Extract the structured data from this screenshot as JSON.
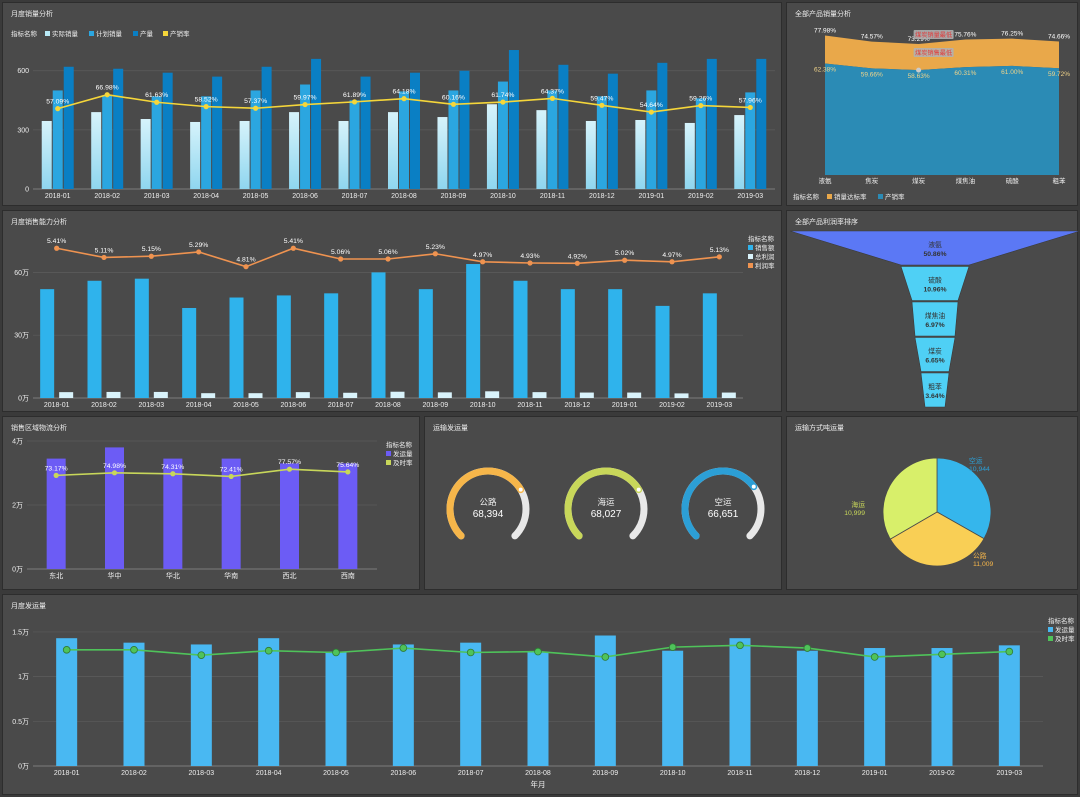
{
  "colors": {
    "grid": "#5c5c5c",
    "axis": "#888",
    "text": "#eee",
    "label": "#fff"
  },
  "months": [
    "2018-01",
    "2018-02",
    "2018-03",
    "2018-04",
    "2018-05",
    "2018-06",
    "2018-07",
    "2018-08",
    "2018-09",
    "2018-10",
    "2018-11",
    "2018-12",
    "2019-01",
    "2019-02",
    "2019-03"
  ],
  "panels": {
    "monthly_sales": {
      "title": "月度销量分析",
      "legend_title": "指标名称"
    },
    "product_sales": {
      "title": "全部产品销量分析",
      "legend_title": "指标名称"
    },
    "monthly_capacity": {
      "title": "月度销售能力分析",
      "legend_title": "指标名称"
    },
    "profit_rank": {
      "title": "全部产品利润率排序"
    },
    "region_logistics": {
      "title": "销售区域物流分析",
      "legend_title": "指标名称"
    },
    "transport_volume": {
      "title": "运输发运量"
    },
    "transport_mode": {
      "title": "运输方式吨运量"
    },
    "monthly_shipment": {
      "title": "月度发运量",
      "legend_title": "指标名称"
    }
  },
  "chart_data": [
    {
      "id": "monthly_sales",
      "type": "bar",
      "categories": [
        "2018-01",
        "2018-02",
        "2018-03",
        "2018-04",
        "2018-05",
        "2018-06",
        "2018-07",
        "2018-08",
        "2018-09",
        "2018-10",
        "2018-11",
        "2018-12",
        "2019-01",
        "2019-02",
        "2019-03"
      ],
      "yticks": [
        "0",
        "300",
        "600"
      ],
      "ylim": [
        0,
        700
      ],
      "series": [
        {
          "name": "实际销量",
          "color": "#b9eaf6",
          "values": [
            345,
            390,
            355,
            340,
            345,
            390,
            345,
            390,
            365,
            430,
            400,
            345,
            350,
            335,
            375
          ]
        },
        {
          "name": "计划销量",
          "color": "#2ba6e0",
          "values": [
            500,
            475,
            470,
            470,
            500,
            530,
            450,
            495,
            500,
            545,
            500,
            470,
            500,
            460,
            490
          ]
        },
        {
          "name": "产量",
          "color": "#0a7fc4",
          "values": [
            620,
            610,
            590,
            570,
            620,
            660,
            570,
            590,
            600,
            705,
            630,
            585,
            640,
            660,
            660
          ]
        }
      ],
      "line": {
        "name": "产销率",
        "color": "#f5d63a",
        "values": [
          57.09,
          66.98,
          61.63,
          58.52,
          57.37,
          59.97,
          61.89,
          64.18,
          60.16,
          61.74,
          64.37,
          59.47,
          54.64,
          59.26,
          57.96
        ],
        "labels": [
          "57.09%",
          "66.98%",
          "61.63%",
          "58.52%",
          "57.37%",
          "59.97%",
          "61.89%",
          "64.18%",
          "60.16%",
          "61.74%",
          "64.37%",
          "59.47%",
          "54.64%",
          "59.26%",
          "57.96%"
        ],
        "ylim": [
          0,
          100
        ]
      }
    },
    {
      "id": "product_sales",
      "type": "area",
      "categories": [
        "液氨",
        "焦炭",
        "煤炭",
        "煤焦油",
        "硫酸",
        "粗苯"
      ],
      "series": [
        {
          "name": "销量达标率",
          "color": "#e9a84a",
          "values": [
            77.98,
            74.57,
            73.29,
            75.76,
            76.25,
            74.66
          ],
          "labels": [
            "77.98%",
            "74.57%",
            "73.29%",
            "75.76%",
            "76.25%",
            "74.66%"
          ]
        },
        {
          "name": "产销率",
          "color": "#2b8bb5",
          "values": [
            62.38,
            59.66,
            58.63,
            60.31,
            61.0,
            59.72
          ],
          "labels": [
            "62.38%",
            "59.66%",
            "58.63%",
            "60.31%",
            "61.00%",
            "59.72%"
          ]
        }
      ],
      "ylim": [
        0,
        85
      ],
      "annotations": [
        "煤炭销量最低",
        "煤炭销售最低"
      ]
    },
    {
      "id": "monthly_capacity",
      "type": "bar",
      "categories": [
        "2018-01",
        "2018-02",
        "2018-03",
        "2018-04",
        "2018-05",
        "2018-06",
        "2018-07",
        "2018-08",
        "2018-09",
        "2018-10",
        "2018-11",
        "2018-12",
        "2019-01",
        "2019-02",
        "2019-03"
      ],
      "yticks": [
        "0万",
        "30万",
        "60万"
      ],
      "ylim": [
        0,
        75
      ],
      "series": [
        {
          "name": "销售额",
          "color": "#2fb3ec",
          "values": [
            52,
            56,
            57,
            43,
            48,
            49,
            50,
            60,
            52,
            64,
            56,
            52,
            52,
            44,
            50
          ]
        },
        {
          "name": "总利润",
          "color": "#d9f3fb",
          "values": [
            2.8,
            2.9,
            2.9,
            2.3,
            2.3,
            2.8,
            2.5,
            3.0,
            2.7,
            3.2,
            2.8,
            2.6,
            2.6,
            2.2,
            2.6
          ]
        }
      ],
      "line": {
        "name": "利润率",
        "color": "#ef9350",
        "values": [
          5.41,
          5.11,
          5.15,
          5.29,
          4.81,
          5.41,
          5.06,
          5.06,
          5.23,
          4.97,
          4.93,
          4.92,
          5.02,
          4.97,
          5.13
        ],
        "labels": [
          "5.41%",
          "5.11%",
          "5.15%",
          "5.29%",
          "4.81%",
          "5.41%",
          "5.06%",
          "5.06%",
          "5.23%",
          "4.97%",
          "4.93%",
          "4.92%",
          "5.02%",
          "4.97%",
          "5.13%"
        ]
      }
    },
    {
      "id": "profit_rank",
      "type": "funnel",
      "categories": [
        "液氨",
        "硫酸",
        "煤焦油",
        "煤炭",
        "粗苯"
      ],
      "values": [
        50.86,
        10.96,
        6.97,
        6.65,
        3.64
      ],
      "labels": [
        "50.86%",
        "10.96%",
        "6.97%",
        "6.65%",
        "3.64%"
      ],
      "colors": [
        "#5b78f5",
        "#4fd0f5",
        "#4fd0f5",
        "#4fd0f5",
        "#4fd0f5"
      ]
    },
    {
      "id": "region_logistics",
      "type": "bar",
      "categories": [
        "东北",
        "华中",
        "华北",
        "华南",
        "西北",
        "西南"
      ],
      "yticks": [
        "0万",
        "2万",
        "4万"
      ],
      "ylim": [
        0,
        4
      ],
      "series": [
        {
          "name": "发运量",
          "color": "#6c5cf5",
          "values": [
            3.45,
            3.8,
            3.45,
            3.45,
            3.3,
            3.3
          ]
        }
      ],
      "line": {
        "name": "及时率",
        "color": "#c8d75a",
        "values": [
          73.17,
          74.98,
          74.31,
          72.41,
          77.57,
          75.64
        ],
        "labels": [
          "73.17%",
          "74.98%",
          "74.31%",
          "72.41%",
          "77.57%",
          "75.64%"
        ]
      }
    },
    {
      "id": "transport_volume",
      "type": "gauge",
      "items": [
        {
          "name": "公路",
          "value": "68,394",
          "color": "#f6b64a",
          "fraction": 0.72
        },
        {
          "name": "海运",
          "value": "68,027",
          "color": "#c8d75a",
          "fraction": 0.72
        },
        {
          "name": "空运",
          "value": "66,651",
          "color": "#2c9fd6",
          "fraction": 0.7
        }
      ]
    },
    {
      "id": "transport_mode",
      "type": "pie",
      "slices": [
        {
          "name": "空运",
          "value": 10944,
          "label": "10,944",
          "color": "#35b6ec",
          "label_color": "#2c9fd6"
        },
        {
          "name": "公路",
          "value": 11009,
          "label": "11,009",
          "color": "#f9cf55",
          "label_color": "#f6b64a"
        },
        {
          "name": "海运",
          "value": 10999,
          "label": "10,999",
          "color": "#d8ef6a",
          "label_color": "#c8d75a"
        }
      ]
    },
    {
      "id": "monthly_shipment",
      "type": "bar",
      "categories": [
        "2018-01",
        "2018-02",
        "2018-03",
        "2018-04",
        "2018-05",
        "2018-06",
        "2018-07",
        "2018-08",
        "2018-09",
        "2018-10",
        "2018-11",
        "2018-12",
        "2019-01",
        "2019-02",
        "2019-03"
      ],
      "xlabel": "年月",
      "yticks": [
        "0万",
        "0.5万",
        "1万",
        "1.5万"
      ],
      "ylim": [
        0,
        1.6
      ],
      "series": [
        {
          "name": "发运量",
          "color": "#49b8f2",
          "values": [
            1.43,
            1.38,
            1.36,
            1.43,
            1.28,
            1.36,
            1.38,
            1.28,
            1.46,
            1.29,
            1.43,
            1.29,
            1.32,
            1.32,
            1.35
          ]
        }
      ],
      "line": {
        "name": "及时率",
        "color": "#4fc35a",
        "values": [
          1.3,
          1.3,
          1.24,
          1.29,
          1.27,
          1.32,
          1.27,
          1.28,
          1.22,
          1.33,
          1.35,
          1.32,
          1.22,
          1.25,
          1.28
        ]
      }
    }
  ]
}
